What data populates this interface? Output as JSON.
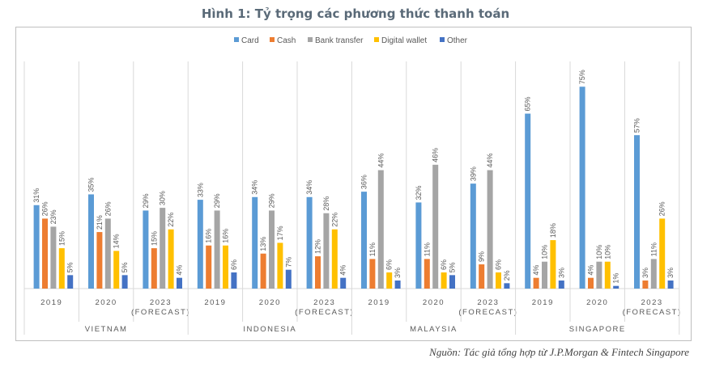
{
  "title": "Hình 1: Tỷ trọng các phương thức thanh toán",
  "source": "Nguồn: Tác giả tổng hợp từ J.P.Morgan & Fintech Singapore",
  "colors": {
    "Card": "#5b9bd5",
    "Cash": "#ed7d31",
    "Bank transfer": "#a5a5a5",
    "Digital wallet": "#ffc000",
    "Other": "#4472c4"
  },
  "chart_data": {
    "type": "bar",
    "title": "Hình 1: Tỷ trọng các phương thức thanh toán",
    "legend_position": "top",
    "grid": false,
    "ylim": [
      0,
      80
    ],
    "series_names": [
      "Card",
      "Cash",
      "Bank transfer",
      "Digital wallet",
      "Other"
    ],
    "groups": [
      {
        "country": "VIETNAM",
        "years": [
          {
            "label": [
              "2019"
            ],
            "values": [
              31,
              26,
              23,
              15,
              5
            ]
          },
          {
            "label": [
              "2020"
            ],
            "values": [
              35,
              21,
              26,
              14,
              5
            ]
          },
          {
            "label": [
              "2023",
              "(FORECAST)"
            ],
            "values": [
              29,
              15,
              30,
              22,
              4
            ]
          }
        ]
      },
      {
        "country": "INDONESIA",
        "years": [
          {
            "label": [
              "2019"
            ],
            "values": [
              33,
              16,
              29,
              16,
              6
            ]
          },
          {
            "label": [
              "2020"
            ],
            "values": [
              34,
              13,
              29,
              17,
              7
            ]
          },
          {
            "label": [
              "2023",
              "(FORECAST)"
            ],
            "values": [
              34,
              12,
              28,
              22,
              4
            ]
          }
        ]
      },
      {
        "country": "MALAYSIA",
        "years": [
          {
            "label": [
              "2019"
            ],
            "values": [
              36,
              11,
              44,
              6,
              3
            ]
          },
          {
            "label": [
              "2020"
            ],
            "values": [
              32,
              11,
              46,
              6,
              5
            ]
          },
          {
            "label": [
              "2023",
              "(FORECAST)"
            ],
            "values": [
              39,
              9,
              44,
              6,
              2
            ]
          }
        ]
      },
      {
        "country": "SINGAPORE",
        "years": [
          {
            "label": [
              "2019"
            ],
            "values": [
              65,
              4,
              10,
              18,
              3
            ]
          },
          {
            "label": [
              "2020"
            ],
            "values": [
              75,
              4,
              10,
              10,
              1
            ]
          },
          {
            "label": [
              "2023",
              "(FORECAST)"
            ],
            "values": [
              57,
              3,
              11,
              26,
              3
            ]
          }
        ]
      }
    ]
  }
}
